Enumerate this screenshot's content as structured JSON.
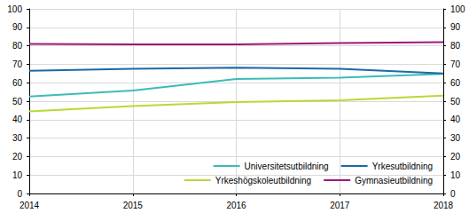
{
  "chart_data": {
    "type": "line",
    "categories": [
      "2014",
      "2015",
      "2016",
      "2017",
      "2018"
    ],
    "series": [
      {
        "name": "Universitetsutbildning",
        "color": "#3cbcb4",
        "values": [
          52.5,
          55.8,
          62,
          62.7,
          64.8
        ]
      },
      {
        "name": "Yrkesutbildning",
        "color": "#1a6aa6",
        "values": [
          66.5,
          67.5,
          68.2,
          67.5,
          65
        ]
      },
      {
        "name": "Yrkeshögskoleutbildning",
        "color": "#b8d935",
        "values": [
          44.5,
          47.3,
          49.5,
          50.5,
          53
        ]
      },
      {
        "name": "Gymnasieutbildning",
        "color": "#a0167c",
        "values": [
          81,
          80.8,
          80.8,
          81.5,
          82
        ]
      }
    ],
    "ylim": [
      0,
      100
    ],
    "yticks": [
      0,
      10,
      20,
      30,
      40,
      50,
      60,
      70,
      80,
      90,
      100
    ],
    "y2lim": [
      0,
      100
    ],
    "y2ticks": [
      0,
      10,
      20,
      30,
      40,
      50,
      60,
      70,
      80,
      90,
      100
    ],
    "grid": true,
    "legend": "lower right"
  }
}
